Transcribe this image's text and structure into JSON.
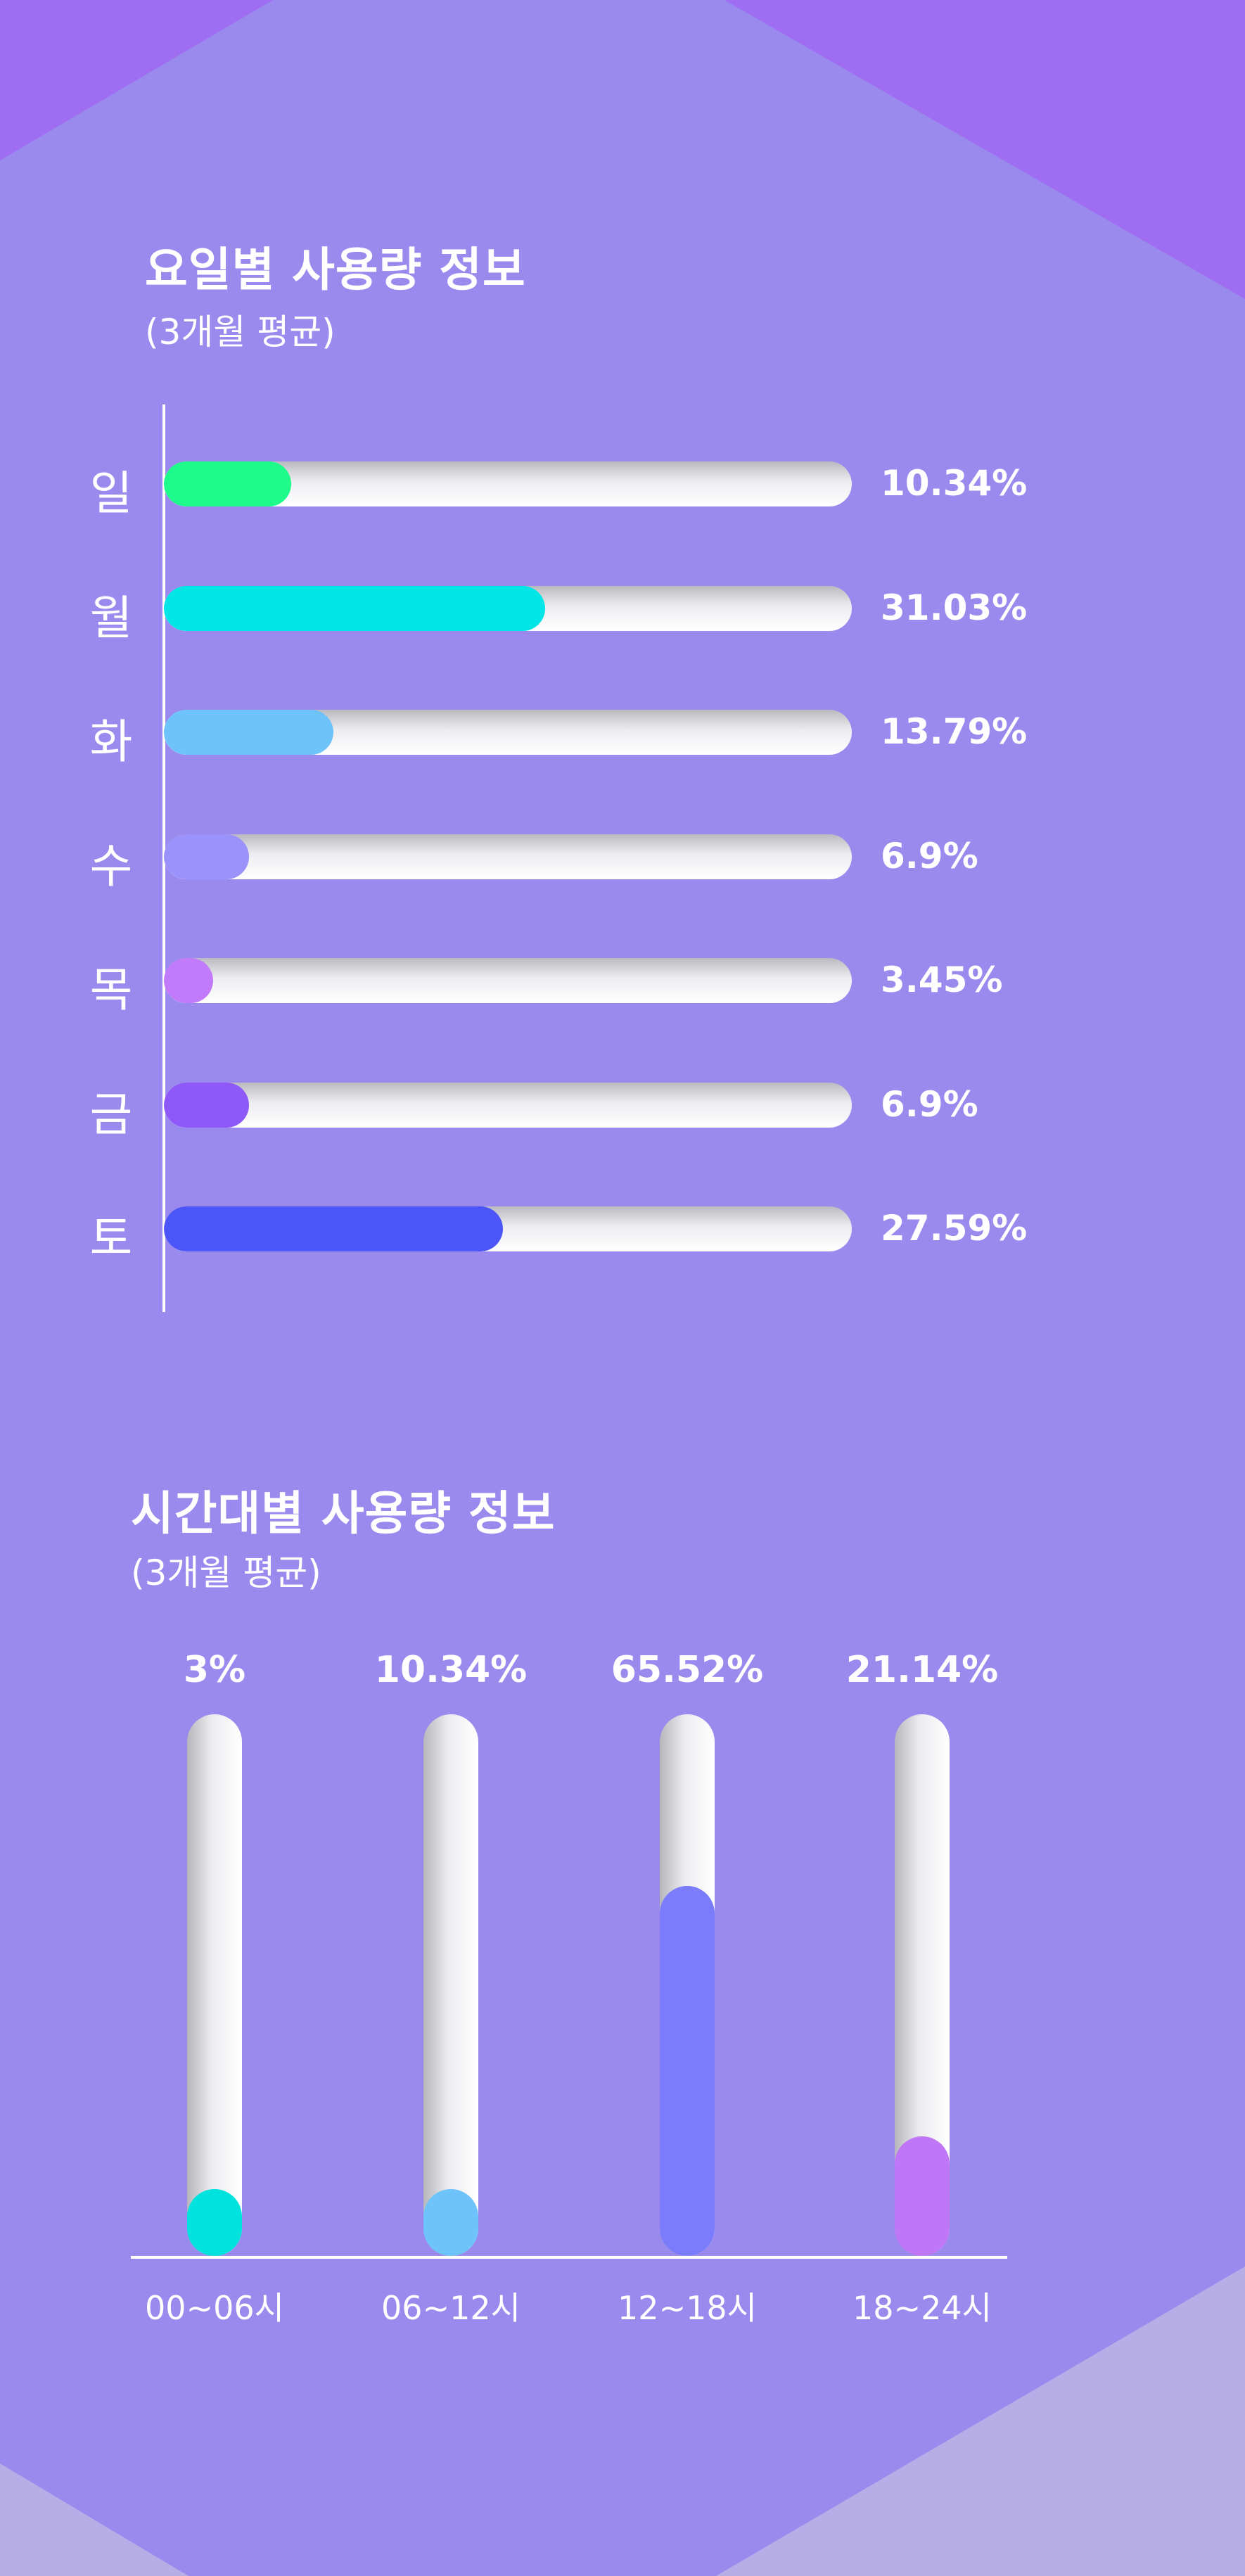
{
  "colors": {
    "background": "#9a8aee",
    "corner_shape": "#9f6df2",
    "bottom_shape": "#b7aee8"
  },
  "chart_data": [
    {
      "type": "bar",
      "orientation": "horizontal",
      "title": "요일별 사용량 정보",
      "subtitle": "(3개월 평균)",
      "categories": [
        "일",
        "월",
        "화",
        "수",
        "목",
        "금",
        "토"
      ],
      "values": [
        10.34,
        31.03,
        13.79,
        6.9,
        3.45,
        6.9,
        27.59
      ],
      "value_labels": [
        "10.34%",
        "31.03%",
        "13.79%",
        "6.9%",
        "3.45%",
        "6.9%",
        "27.59%"
      ],
      "unit": "%",
      "xlim": [
        0,
        56
      ],
      "colors": [
        "#1dfb8a",
        "#00e6e6",
        "#6ec3fb",
        "#9b93fb",
        "#c17af9",
        "#8f59f9",
        "#4c55f7"
      ],
      "grid": false
    },
    {
      "type": "bar",
      "orientation": "vertical",
      "title": "시간대별 사용량 정보",
      "subtitle": "(3개월 평균)",
      "categories": [
        "00~06시",
        "06~12시",
        "12~18시",
        "18~24시"
      ],
      "values": [
        3,
        10.34,
        65.52,
        21.14
      ],
      "value_labels": [
        "3%",
        "10.34%",
        "65.52%",
        "21.14%"
      ],
      "unit": "%",
      "ylim": [
        0,
        96
      ],
      "colors": [
        "#00e2dd",
        "#6ec3fb",
        "#7b7cfb",
        "#bf76f7"
      ],
      "grid": false
    }
  ]
}
